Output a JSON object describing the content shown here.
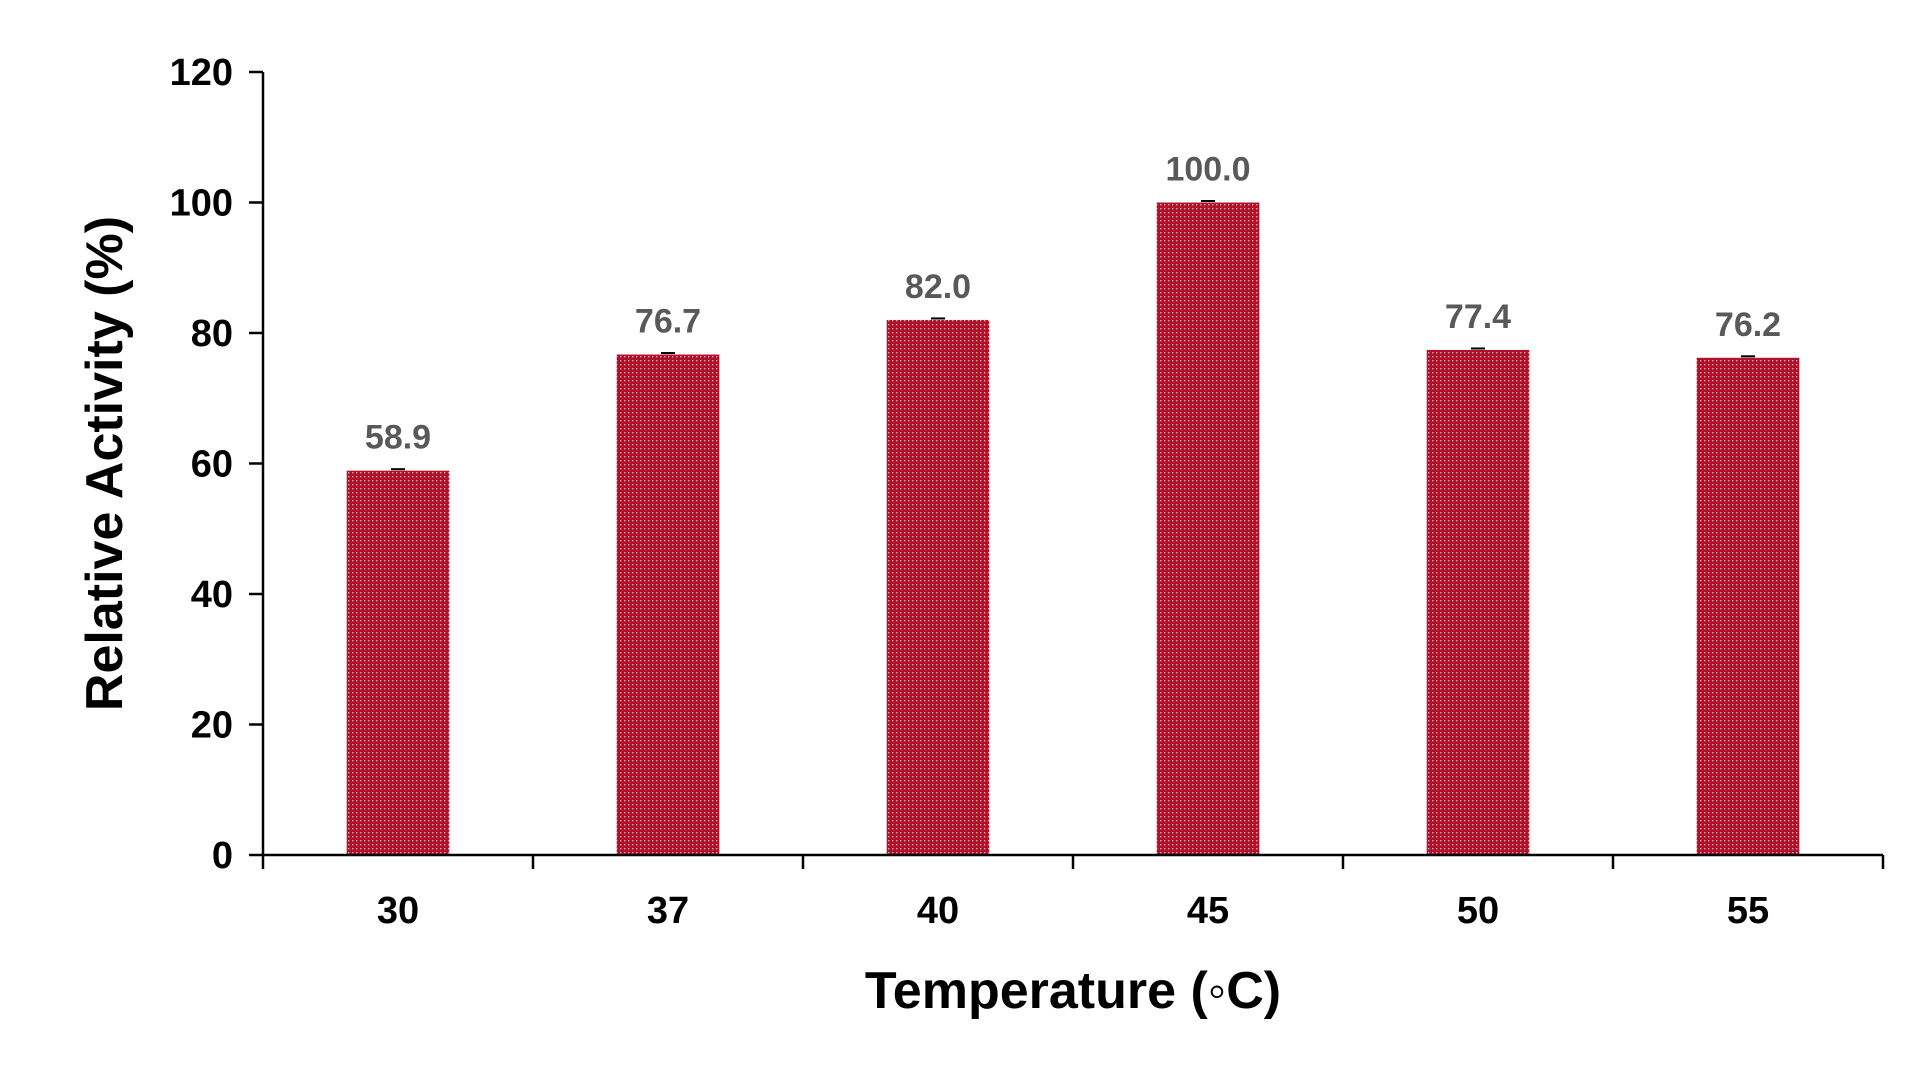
{
  "chart_data": {
    "type": "bar",
    "title": "",
    "xlabel": "Temperature (◦C)",
    "ylabel": "Relative Activity (%)",
    "categories": [
      "30",
      "37",
      "40",
      "45",
      "50",
      "55"
    ],
    "values": [
      58.9,
      76.7,
      82.0,
      100.0,
      77.4,
      76.2
    ],
    "data_labels": [
      "58.9",
      "76.7",
      "82.0",
      "100.0",
      "77.4",
      "76.2"
    ],
    "ylim": [
      0,
      120
    ],
    "yticks": [
      "0",
      "20",
      "40",
      "60",
      "80",
      "100",
      "120"
    ],
    "ytick_values": [
      0,
      20,
      40,
      60,
      80,
      100,
      120
    ],
    "grid": false,
    "legend": "none",
    "bar_color": "#b0102a",
    "bar_pattern": "dotted",
    "error_bars": true
  }
}
